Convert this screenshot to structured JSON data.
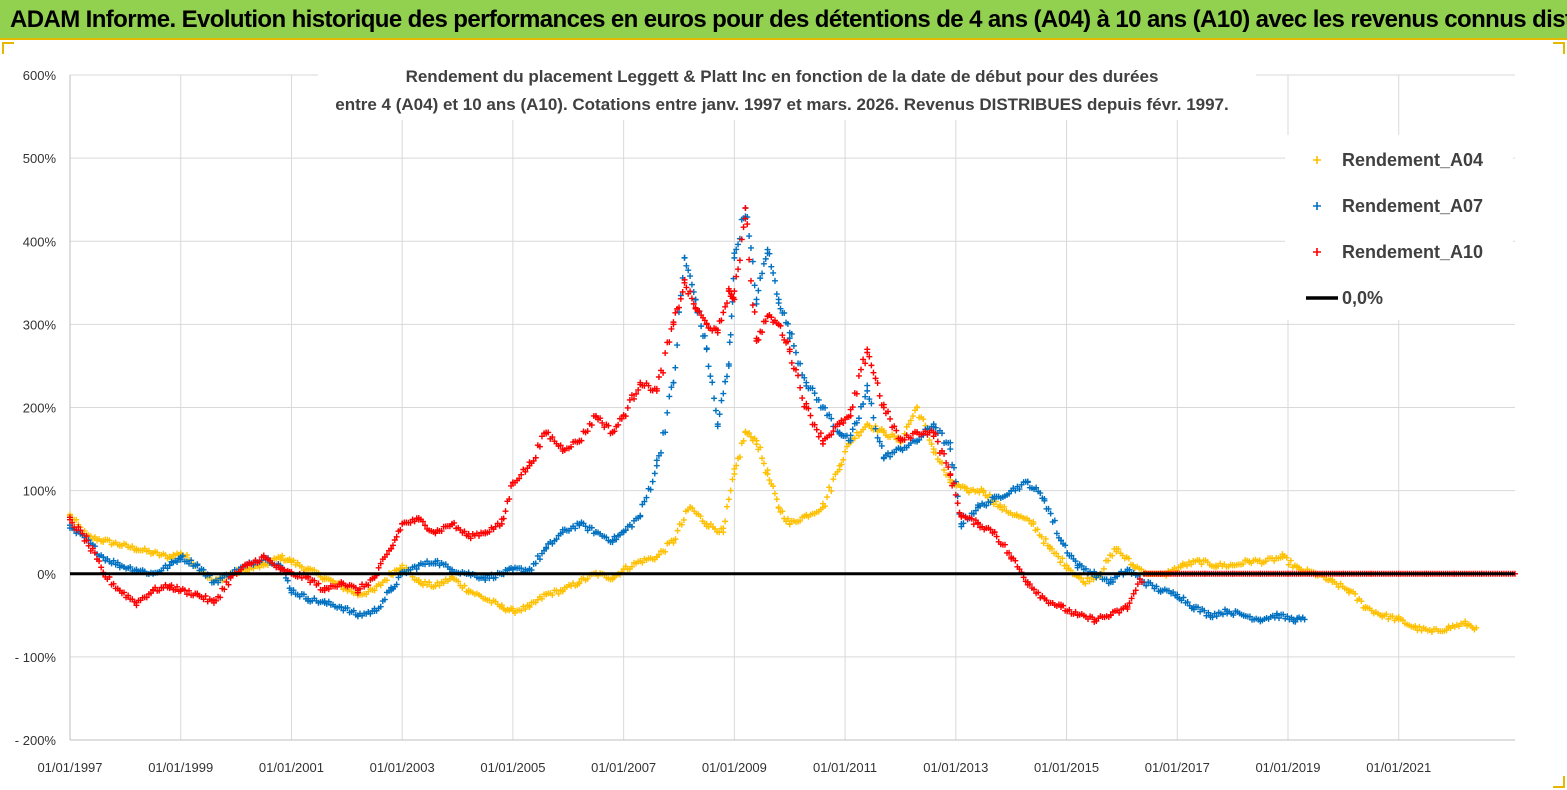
{
  "header": {
    "title": "ADAM Informe. Evolution historique des performances en euros pour des détentions de 4 ans (A04) à 10 ans (A10) avec les revenus connus distribués"
  },
  "chart_data": {
    "type": "scatter",
    "title_line1": "Rendement du placement Leggett  & Platt Inc en fonction de la date de début pour des durées",
    "title_line2": "entre 4 (A04) et 10 ans (A10). Cotations entre janv. 1997 et mars. 2026. Revenus DISTRIBUES depuis févr. 1997.",
    "ylim": [
      -200,
      600
    ],
    "xlim": [
      1997.0,
      2023.1
    ],
    "y_ticks": [
      600,
      500,
      400,
      300,
      200,
      100,
      0,
      -100,
      -200
    ],
    "y_tick_labels": [
      "600%",
      "500%",
      "400%",
      "300%",
      "200%",
      "100%",
      "0%",
      "- 100%",
      "- 200%"
    ],
    "x_ticks": [
      1997,
      1999,
      2001,
      2003,
      2005,
      2007,
      2009,
      2011,
      2013,
      2015,
      2017,
      2019,
      2021
    ],
    "x_tick_labels": [
      "01/01/1997",
      "01/01/1999",
      "01/01/2001",
      "01/01/2003",
      "01/01/2005",
      "01/01/2007",
      "01/01/2009",
      "01/01/2011",
      "01/01/2013",
      "01/01/2015",
      "01/01/2017",
      "01/01/2019",
      "01/01/2021"
    ],
    "grid": true,
    "legend_position": "top-right",
    "series": [
      {
        "name": "Rendement_A04",
        "color": "#ffc000",
        "points": [
          [
            1997.0,
            70
          ],
          [
            1997.3,
            45
          ],
          [
            1997.6,
            40
          ],
          [
            1997.9,
            35
          ],
          [
            1998.2,
            30
          ],
          [
            1998.5,
            25
          ],
          [
            1998.8,
            20
          ],
          [
            1999.0,
            25
          ],
          [
            1999.3,
            10
          ],
          [
            1999.6,
            -10
          ],
          [
            1999.9,
            0
          ],
          [
            2000.2,
            5
          ],
          [
            2000.5,
            10
          ],
          [
            2000.8,
            20
          ],
          [
            2001.0,
            15
          ],
          [
            2001.3,
            5
          ],
          [
            2001.6,
            -5
          ],
          [
            2001.9,
            -15
          ],
          [
            2002.2,
            -25
          ],
          [
            2002.5,
            -20
          ],
          [
            2002.8,
            0
          ],
          [
            2003.0,
            10
          ],
          [
            2003.3,
            -10
          ],
          [
            2003.6,
            -15
          ],
          [
            2003.9,
            -5
          ],
          [
            2004.2,
            -20
          ],
          [
            2004.5,
            -30
          ],
          [
            2004.8,
            -40
          ],
          [
            2005.0,
            -45
          ],
          [
            2005.3,
            -40
          ],
          [
            2005.6,
            -25
          ],
          [
            2005.9,
            -20
          ],
          [
            2006.2,
            -10
          ],
          [
            2006.5,
            0
          ],
          [
            2006.8,
            -5
          ],
          [
            2007.0,
            5
          ],
          [
            2007.3,
            15
          ],
          [
            2007.6,
            20
          ],
          [
            2007.9,
            40
          ],
          [
            2008.2,
            80
          ],
          [
            2008.5,
            60
          ],
          [
            2008.8,
            50
          ],
          [
            2009.0,
            120
          ],
          [
            2009.2,
            170
          ],
          [
            2009.4,
            160
          ],
          [
            2009.6,
            120
          ],
          [
            2009.8,
            80
          ],
          [
            2010.0,
            60
          ],
          [
            2010.3,
            70
          ],
          [
            2010.6,
            80
          ],
          [
            2010.9,
            130
          ],
          [
            2011.1,
            160
          ],
          [
            2011.4,
            180
          ],
          [
            2011.7,
            170
          ],
          [
            2012.0,
            160
          ],
          [
            2012.3,
            200
          ],
          [
            2012.6,
            150
          ],
          [
            2012.9,
            110
          ],
          [
            2013.2,
            100
          ],
          [
            2013.5,
            100
          ],
          [
            2013.8,
            80
          ],
          [
            2014.1,
            70
          ],
          [
            2014.4,
            60
          ],
          [
            2014.7,
            30
          ],
          [
            2015.0,
            10
          ],
          [
            2015.3,
            -10
          ],
          [
            2015.6,
            0
          ],
          [
            2015.9,
            30
          ],
          [
            2016.2,
            10
          ],
          [
            2016.5,
            0
          ],
          [
            2016.8,
            0
          ],
          [
            2017.1,
            10
          ],
          [
            2017.4,
            15
          ],
          [
            2017.7,
            10
          ],
          [
            2018.0,
            10
          ],
          [
            2018.3,
            15
          ],
          [
            2018.6,
            15
          ],
          [
            2018.9,
            20
          ],
          [
            2019.2,
            5
          ],
          [
            2019.5,
            0
          ],
          [
            2019.8,
            -10
          ],
          [
            2020.1,
            -20
          ],
          [
            2020.4,
            -40
          ],
          [
            2020.7,
            -50
          ],
          [
            2021.0,
            -55
          ],
          [
            2021.3,
            -65
          ],
          [
            2021.6,
            -70
          ],
          [
            2021.9,
            -65
          ],
          [
            2022.2,
            -60
          ],
          [
            2022.4,
            -65
          ]
        ]
      },
      {
        "name": "Rendement_A07",
        "color": "#0070c0",
        "points": [
          [
            1997.0,
            55
          ],
          [
            1997.3,
            40
          ],
          [
            1997.6,
            20
          ],
          [
            1997.9,
            10
          ],
          [
            1998.2,
            5
          ],
          [
            1998.5,
            0
          ],
          [
            1998.8,
            10
          ],
          [
            1999.0,
            20
          ],
          [
            1999.3,
            10
          ],
          [
            1999.6,
            -10
          ],
          [
            1999.9,
            0
          ],
          [
            2000.2,
            10
          ],
          [
            2000.5,
            20
          ],
          [
            2000.8,
            10
          ],
          [
            2001.0,
            -20
          ],
          [
            2001.3,
            -30
          ],
          [
            2001.6,
            -35
          ],
          [
            2001.9,
            -40
          ],
          [
            2002.2,
            -50
          ],
          [
            2002.5,
            -45
          ],
          [
            2002.8,
            -20
          ],
          [
            2003.0,
            0
          ],
          [
            2003.3,
            10
          ],
          [
            2003.6,
            15
          ],
          [
            2003.9,
            5
          ],
          [
            2004.2,
            0
          ],
          [
            2004.5,
            -5
          ],
          [
            2004.8,
            0
          ],
          [
            2005.0,
            5
          ],
          [
            2005.3,
            5
          ],
          [
            2005.6,
            30
          ],
          [
            2005.9,
            50
          ],
          [
            2006.2,
            60
          ],
          [
            2006.5,
            50
          ],
          [
            2006.8,
            40
          ],
          [
            2007.0,
            50
          ],
          [
            2007.3,
            70
          ],
          [
            2007.6,
            130
          ],
          [
            2007.9,
            230
          ],
          [
            2008.1,
            380
          ],
          [
            2008.3,
            330
          ],
          [
            2008.5,
            270
          ],
          [
            2008.7,
            180
          ],
          [
            2008.9,
            250
          ],
          [
            2009.0,
            380
          ],
          [
            2009.2,
            440
          ],
          [
            2009.4,
            330
          ],
          [
            2009.6,
            390
          ],
          [
            2009.8,
            330
          ],
          [
            2010.0,
            290
          ],
          [
            2010.3,
            230
          ],
          [
            2010.6,
            200
          ],
          [
            2010.9,
            170
          ],
          [
            2011.1,
            160
          ],
          [
            2011.4,
            220
          ],
          [
            2011.7,
            140
          ],
          [
            2012.0,
            150
          ],
          [
            2012.3,
            160
          ],
          [
            2012.6,
            180
          ],
          [
            2012.9,
            150
          ],
          [
            2013.1,
            60
          ],
          [
            2013.4,
            80
          ],
          [
            2013.7,
            90
          ],
          [
            2014.0,
            100
          ],
          [
            2014.3,
            110
          ],
          [
            2014.6,
            90
          ],
          [
            2014.9,
            40
          ],
          [
            2015.2,
            10
          ],
          [
            2015.5,
            0
          ],
          [
            2015.8,
            -10
          ],
          [
            2016.1,
            5
          ],
          [
            2016.4,
            -10
          ],
          [
            2016.7,
            -20
          ],
          [
            2017.0,
            -25
          ],
          [
            2017.3,
            -40
          ],
          [
            2017.6,
            -50
          ],
          [
            2017.9,
            -45
          ],
          [
            2018.2,
            -50
          ],
          [
            2018.5,
            -55
          ],
          [
            2018.8,
            -50
          ],
          [
            2019.1,
            -55
          ],
          [
            2019.3,
            -55
          ]
        ]
      },
      {
        "name": "Rendement_A10",
        "color": "#ff0000",
        "points": [
          [
            1997.0,
            65
          ],
          [
            1997.3,
            40
          ],
          [
            1997.6,
            0
          ],
          [
            1997.9,
            -20
          ],
          [
            1998.2,
            -35
          ],
          [
            1998.5,
            -20
          ],
          [
            1998.8,
            -15
          ],
          [
            1999.0,
            -20
          ],
          [
            1999.3,
            -25
          ],
          [
            1999.6,
            -35
          ],
          [
            1999.9,
            -5
          ],
          [
            2000.2,
            10
          ],
          [
            2000.5,
            20
          ],
          [
            2000.8,
            5
          ],
          [
            2001.0,
            0
          ],
          [
            2001.3,
            -5
          ],
          [
            2001.6,
            -20
          ],
          [
            2001.9,
            -10
          ],
          [
            2002.2,
            -20
          ],
          [
            2002.5,
            -5
          ],
          [
            2002.8,
            30
          ],
          [
            2003.0,
            60
          ],
          [
            2003.3,
            65
          ],
          [
            2003.6,
            50
          ],
          [
            2003.9,
            60
          ],
          [
            2004.2,
            45
          ],
          [
            2004.5,
            50
          ],
          [
            2004.8,
            60
          ],
          [
            2005.0,
            110
          ],
          [
            2005.3,
            130
          ],
          [
            2005.6,
            170
          ],
          [
            2005.9,
            150
          ],
          [
            2006.2,
            160
          ],
          [
            2006.5,
            190
          ],
          [
            2006.8,
            170
          ],
          [
            2007.0,
            190
          ],
          [
            2007.3,
            230
          ],
          [
            2007.6,
            220
          ],
          [
            2007.9,
            300
          ],
          [
            2008.1,
            350
          ],
          [
            2008.3,
            320
          ],
          [
            2008.5,
            300
          ],
          [
            2008.7,
            290
          ],
          [
            2008.9,
            340
          ],
          [
            2009.0,
            330
          ],
          [
            2009.2,
            440
          ],
          [
            2009.4,
            280
          ],
          [
            2009.6,
            310
          ],
          [
            2009.8,
            300
          ],
          [
            2010.0,
            270
          ],
          [
            2010.3,
            200
          ],
          [
            2010.6,
            160
          ],
          [
            2010.9,
            180
          ],
          [
            2011.1,
            190
          ],
          [
            2011.4,
            270
          ],
          [
            2011.7,
            200
          ],
          [
            2012.0,
            160
          ],
          [
            2012.3,
            170
          ],
          [
            2012.6,
            170
          ],
          [
            2012.9,
            120
          ],
          [
            2013.1,
            70
          ],
          [
            2013.4,
            60
          ],
          [
            2013.7,
            50
          ],
          [
            2014.0,
            20
          ],
          [
            2014.3,
            -10
          ],
          [
            2014.6,
            -30
          ],
          [
            2014.9,
            -40
          ],
          [
            2015.2,
            -50
          ],
          [
            2015.5,
            -55
          ],
          [
            2015.8,
            -50
          ],
          [
            2016.1,
            -40
          ],
          [
            2016.4,
            0
          ],
          [
            2016.7,
            0
          ],
          [
            2017.0,
            0
          ],
          [
            2017.5,
            0
          ],
          [
            2018.0,
            0
          ],
          [
            2018.5,
            0
          ],
          [
            2019.0,
            0
          ],
          [
            2019.5,
            0
          ],
          [
            2020.0,
            0
          ],
          [
            2020.5,
            0
          ],
          [
            2021.0,
            0
          ],
          [
            2021.5,
            0
          ],
          [
            2022.0,
            0
          ],
          [
            2022.5,
            0
          ],
          [
            2023.1,
            0
          ]
        ]
      },
      {
        "name": "0,0%",
        "color": "#000000",
        "points": [
          [
            1997.0,
            0
          ],
          [
            2023.1,
            0
          ]
        ]
      }
    ]
  }
}
